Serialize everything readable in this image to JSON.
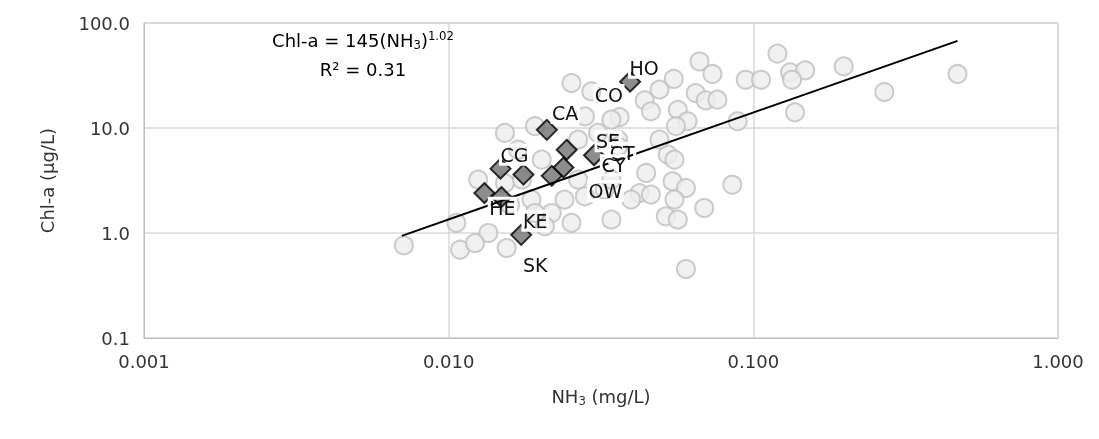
{
  "chart_data": {
    "type": "scatter",
    "xlabel": "NH$_{3}$ (mg/L)",
    "ylabel": "Chl-a (µg/L)",
    "log": "xy",
    "grid": true,
    "xlim": [
      0.001,
      1
    ],
    "xticks": [
      {
        "value": 0.001,
        "label": "0.001"
      },
      {
        "value": 0.01,
        "label": "0.010"
      },
      {
        "value": 0.1,
        "label": "0.100"
      },
      {
        "value": 1,
        "label": "1.000"
      }
    ],
    "ylim": [
      0.1,
      100
    ],
    "yticks": [
      {
        "value": 0.1,
        "label": "0.1"
      },
      {
        "value": 1,
        "label": "1.0"
      },
      {
        "value": 10,
        "label": "10.0"
      },
      {
        "value": 100,
        "label": "100.0"
      }
    ],
    "series": [
      {
        "marker": "circle",
        "color": "#eeeeee",
        "x": [
          0.12,
          0.0666,
          0.0734,
          0.0548,
          0.0944,
          0.106,
          0.132,
          0.148,
          0.134,
          0.198,
          0.468,
          0.269,
          0.137,
          0.0888,
          0.0492,
          0.0647,
          0.0698,
          0.0762,
          0.044,
          0.0461,
          0.0565,
          0.0608,
          0.0557,
          0.0364,
          0.0524,
          0.0551,
          0.0445,
          0.0543,
          0.0601,
          0.0853,
          0.0423,
          0.0461,
          0.0551,
          0.069,
          0.0516,
          0.0565,
          0.0342,
          0.0601,
          0.0397,
          0.0492,
          0.036,
          0.00713,
          0.0109,
          0.0106,
          0.0155,
          0.0253,
          0.0294,
          0.0153,
          0.0192,
          0.0169,
          0.0202,
          0.0153,
          0.0159,
          0.0187,
          0.0218,
          0.0207,
          0.0253,
          0.028,
          0.0342,
          0.036,
          0.0266,
          0.0309,
          0.0325,
          0.028,
          0.0125,
          0.0135,
          0.0122,
          0.0174,
          0.0266,
          0.024,
          0.0192,
          0.0342
        ],
        "values": [
          51,
          43,
          32.7,
          29.3,
          28.8,
          28.8,
          33.9,
          35.4,
          28.8,
          38.6,
          32.7,
          22,
          14.1,
          11.6,
          23.2,
          21.5,
          18.3,
          18.6,
          18.3,
          14.4,
          14.9,
          11.6,
          10.4,
          12.7,
          5.57,
          4.99,
          3.73,
          3.1,
          2.68,
          2.88,
          2.4,
          2.32,
          2.08,
          1.73,
          1.44,
          1.34,
          1.34,
          0.454,
          2.08,
          7.74,
          7.74,
          0.762,
          0.693,
          1.25,
          0.72,
          26.8,
          22.3,
          8.97,
          10.4,
          6.21,
          4.99,
          2.99,
          1.86,
          2.08,
          1.55,
          1.16,
          1.25,
          12.9,
          12,
          6.68,
          7.74,
          8.97,
          2.58,
          2.23,
          3.22,
          1,
          0.8,
          3.22,
          3.22,
          2.08,
          1.55,
          3.22
        ]
      },
      {
        "marker": "diamond",
        "color": "#707070",
        "x": [
          0.021,
          0.0244,
          0.03,
          0.0148,
          0.0176,
          0.0238,
          0.0218,
          0.0131,
          0.0149,
          0.0173,
          0.0394
        ],
        "values": [
          9.6,
          6.2,
          5.5,
          4.1,
          3.6,
          4.2,
          3.5,
          2.4,
          2.2,
          0.96,
          27.6
        ]
      },
      {
        "type": "line",
        "marker": "none",
        "line_style": "solid",
        "color": "#000000",
        "x": [
          0.00702,
          0.468
        ],
        "values": [
          0.94,
          67.5
        ]
      }
    ],
    "annotations": [
      "Chl-a = 145(NH$_{3}$)$^{1.02}$",
      "R² = 0.31",
      {
        "text": "HO",
        "x": 0.0394,
        "y": 27.6
      },
      {
        "text": "CO",
        "x": 0.0302,
        "y": 15.2
      },
      {
        "text": "SE",
        "x": 0.03,
        "y": 5.5
      },
      {
        "text": "CA",
        "x": 0.0217,
        "y": 10.2
      },
      {
        "text": "CG",
        "x": 0.0148,
        "y": 4.1
      },
      {
        "text": "CT",
        "x": 0.0334,
        "y": 4.25
      },
      {
        "text": "CY",
        "x": 0.0313,
        "y": 3.25
      },
      {
        "text": "OW",
        "x": 0.0294,
        "y": 1.85
      },
      {
        "text": "HE",
        "x": 0.0135,
        "y": 1.28
      },
      {
        "text": "KE",
        "x": 0.0173,
        "y": 0.96
      },
      {
        "text": "SK",
        "x": 0.0173,
        "y": 0.96
      }
    ]
  }
}
